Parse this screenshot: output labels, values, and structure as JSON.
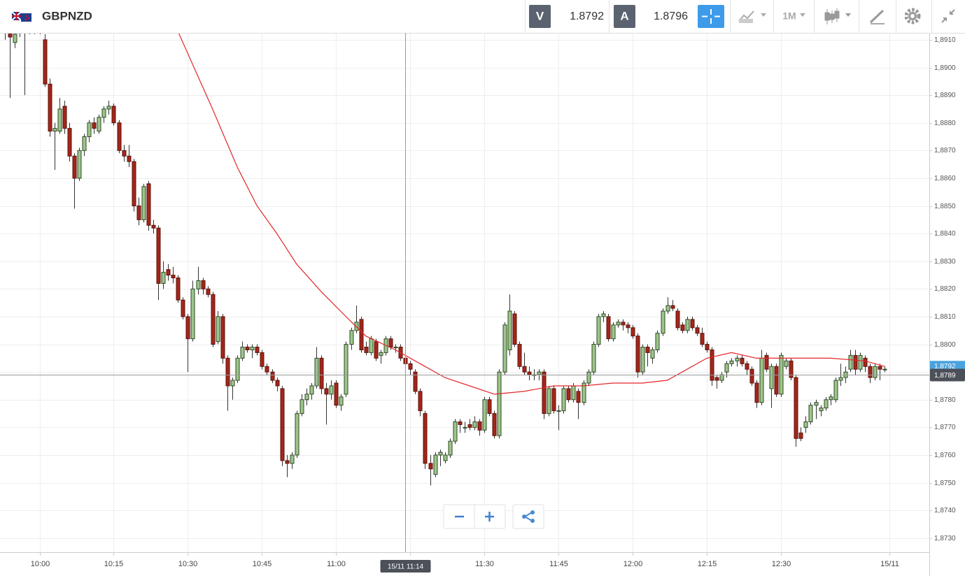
{
  "header": {
    "symbol": "GBPNZD",
    "bid_label": "V",
    "bid": 1.8792,
    "ask_label": "A",
    "ask": 1.8796,
    "timeframe": "1M"
  },
  "chart_data": {
    "type": "candlestick",
    "x": [
      "09:53",
      "09:54",
      "09:55",
      "09:56",
      "09:57",
      "09:58",
      "09:59",
      "10:00",
      "10:01",
      "10:02",
      "10:03",
      "10:04",
      "10:05",
      "10:06",
      "10:07",
      "10:08",
      "10:09",
      "10:10",
      "10:11",
      "10:12",
      "10:13",
      "10:14",
      "10:15",
      "10:16",
      "10:17",
      "10:18",
      "10:19",
      "10:20",
      "10:21",
      "10:22",
      "10:23",
      "10:24",
      "10:25",
      "10:26",
      "10:27",
      "10:28",
      "10:29",
      "10:30",
      "10:31",
      "10:32",
      "10:33",
      "10:34",
      "10:35",
      "10:36",
      "10:37",
      "10:38",
      "10:39",
      "10:40",
      "10:41",
      "10:42",
      "10:43",
      "10:44",
      "10:45",
      "10:46",
      "10:47",
      "10:48",
      "10:49",
      "10:50",
      "10:51",
      "10:52",
      "10:53",
      "10:54",
      "10:55",
      "10:56",
      "10:57",
      "10:58",
      "10:59",
      "11:00",
      "11:01",
      "11:02",
      "11:03",
      "11:04",
      "11:05",
      "11:06",
      "11:07",
      "11:08",
      "11:09",
      "11:10",
      "11:11",
      "11:12",
      "11:13",
      "11:14",
      "11:15",
      "11:16",
      "11:17",
      "11:18",
      "11:19",
      "11:20",
      "11:21",
      "11:22",
      "11:23",
      "11:24",
      "11:25",
      "11:26",
      "11:27",
      "11:28",
      "11:29",
      "11:30",
      "11:31",
      "11:32",
      "11:33",
      "11:34",
      "11:35",
      "11:36",
      "11:37",
      "11:38",
      "11:39",
      "11:40",
      "11:41",
      "11:42",
      "11:43",
      "11:44",
      "11:45",
      "11:46",
      "11:47",
      "11:48",
      "11:49",
      "11:50",
      "11:51",
      "11:52",
      "11:53",
      "11:54",
      "11:55",
      "11:56",
      "11:57",
      "11:58",
      "11:59",
      "12:00",
      "12:01",
      "12:02",
      "12:03",
      "12:04",
      "12:05",
      "12:06",
      "12:07",
      "12:08",
      "12:09",
      "12:10",
      "12:11",
      "12:12",
      "12:13",
      "12:14",
      "12:15",
      "12:16",
      "12:17",
      "12:18",
      "12:19",
      "12:20",
      "12:21",
      "12:22",
      "12:23",
      "12:24",
      "12:25",
      "12:26",
      "12:27",
      "12:28",
      "12:29",
      "12:30",
      "12:31",
      "12:32",
      "12:33",
      "12:34",
      "12:35",
      "12:36",
      "12:37",
      "12:38",
      "12:39",
      "12:40",
      "12:41",
      "12:42",
      "12:43",
      "12:44",
      "12:45",
      "12:46",
      "12:47",
      "12:48",
      "12:49",
      "12:50",
      "12:51"
    ],
    "open": [
      1.8914,
      1.8914,
      1.8909,
      1.8913,
      1.8915,
      1.8914,
      1.8916,
      1.8915,
      1.891,
      1.8894,
      1.8877,
      1.8877,
      1.8886,
      1.8878,
      1.8868,
      1.886,
      1.887,
      1.8875,
      1.888,
      1.8877,
      1.8882,
      1.8885,
      1.8886,
      1.888,
      1.887,
      1.8868,
      1.8866,
      1.885,
      1.8845,
      1.8858,
      1.8843,
      1.8842,
      1.8822,
      1.8827,
      1.8825,
      1.8824,
      1.8816,
      1.881,
      1.8802,
      1.882,
      1.8823,
      1.882,
      1.8818,
      1.8801,
      1.881,
      1.8795,
      1.8785,
      1.8787,
      1.8795,
      1.8799,
      1.8798,
      1.8799,
      1.8797,
      1.8792,
      1.879,
      1.8787,
      1.8784,
      1.8758,
      1.8757,
      1.876,
      1.8775,
      1.878,
      1.8782,
      1.8785,
      1.8795,
      1.8784,
      1.8782,
      1.8786,
      1.8778,
      1.8782,
      1.88,
      1.8805,
      1.8809,
      1.8799,
      1.8797,
      1.8801,
      1.8796,
      1.8797,
      1.8802,
      1.8799,
      1.8799,
      1.8795,
      1.8793,
      1.879,
      1.8783,
      1.8775,
      1.8757,
      1.8753,
      1.876,
      1.8758,
      1.876,
      1.8765,
      1.8772,
      1.877,
      1.8771,
      1.877,
      1.8772,
      1.8769,
      1.878,
      1.8775,
      1.8767,
      1.879,
      1.8798,
      1.8811,
      1.88,
      1.8792,
      1.879,
      1.8789,
      1.8789,
      1.879,
      1.8775,
      1.8784,
      1.8776,
      1.8776,
      1.8784,
      1.878,
      1.8783,
      1.8779,
      1.8786,
      1.879,
      1.88,
      1.881,
      1.881,
      1.8802,
      1.8807,
      1.8808,
      1.8807,
      1.8806,
      1.8803,
      1.879,
      1.8799,
      1.8795,
      1.8798,
      1.8804,
      1.8812,
      1.8814,
      1.8812,
      1.8807,
      1.8805,
      1.8809,
      1.8806,
      1.8804,
      1.88,
      1.8798,
      1.8788,
      1.8787,
      1.879,
      1.8793,
      1.8794,
      1.8795,
      1.8793,
      1.8791,
      1.8786,
      1.8779,
      1.8796,
      1.8784,
      1.8792,
      1.8782,
      1.8792,
      1.8794,
      1.8788,
      1.8768,
      1.877,
      1.8772,
      1.8778,
      1.8776,
      1.8777,
      1.878,
      1.878,
      1.8787,
      1.8788,
      1.8791,
      1.8796,
      1.8791,
      1.8795,
      1.8792,
      1.8788,
      1.8792,
      1.8791
    ],
    "high": [
      1.8918,
      1.8916,
      1.8913,
      1.8917,
      1.8918,
      1.8919,
      1.8918,
      1.8917,
      1.8912,
      1.8896,
      1.888,
      1.8889,
      1.8888,
      1.888,
      1.8869,
      1.8871,
      1.8876,
      1.8881,
      1.8882,
      1.8883,
      1.8886,
      1.8888,
      1.8887,
      1.8881,
      1.8872,
      1.8872,
      1.8867,
      1.8853,
      1.8858,
      1.8859,
      1.8845,
      1.8843,
      1.883,
      1.8829,
      1.8828,
      1.8825,
      1.8817,
      1.8811,
      1.8823,
      1.8828,
      1.8824,
      1.8821,
      1.8819,
      1.8812,
      1.8811,
      1.8796,
      1.8788,
      1.8796,
      1.8801,
      1.88,
      1.88,
      1.88,
      1.8798,
      1.8793,
      1.8791,
      1.8788,
      1.8785,
      1.876,
      1.8761,
      1.8776,
      1.8782,
      1.8784,
      1.8786,
      1.8799,
      1.8796,
      1.8786,
      1.8787,
      1.8787,
      1.8782,
      1.8801,
      1.8806,
      1.8814,
      1.881,
      1.8801,
      1.8803,
      1.8802,
      1.8798,
      1.8803,
      1.8803,
      1.88,
      1.88,
      1.8796,
      1.8794,
      1.8791,
      1.8784,
      1.8776,
      1.876,
      1.8761,
      1.8762,
      1.8761,
      1.8766,
      1.8773,
      1.8773,
      1.8772,
      1.8773,
      1.8774,
      1.8773,
      1.8781,
      1.8781,
      1.8776,
      1.8791,
      1.8808,
      1.8818,
      1.8812,
      1.8801,
      1.8797,
      1.8792,
      1.8791,
      1.8791,
      1.8791,
      1.8785,
      1.8785,
      1.8778,
      1.8785,
      1.8785,
      1.8786,
      1.8784,
      1.8787,
      1.8791,
      1.8801,
      1.8811,
      1.8812,
      1.8811,
      1.8808,
      1.8809,
      1.8809,
      1.8808,
      1.8807,
      1.8804,
      1.88,
      1.88,
      1.8799,
      1.8805,
      1.8813,
      1.8817,
      1.8816,
      1.8813,
      1.8808,
      1.881,
      1.881,
      1.8807,
      1.8806,
      1.8801,
      1.8799,
      1.8789,
      1.879,
      1.8794,
      1.8795,
      1.8796,
      1.8796,
      1.8794,
      1.8792,
      1.8787,
      1.8798,
      1.8797,
      1.8793,
      1.8793,
      1.8797,
      1.8795,
      1.8795,
      1.8789,
      1.877,
      1.8774,
      1.8779,
      1.878,
      1.8778,
      1.8781,
      1.8782,
      1.8788,
      1.8793,
      1.8792,
      1.8798,
      1.8798,
      1.8797,
      1.8796,
      1.8793,
      1.8793,
      1.8793,
      1.8792
    ],
    "low": [
      1.891,
      1.8889,
      1.8907,
      1.8911,
      1.889,
      1.8912,
      1.8912,
      1.8912,
      1.8893,
      1.8875,
      1.8863,
      1.8876,
      1.8876,
      1.8866,
      1.8849,
      1.8859,
      1.8868,
      1.8873,
      1.8876,
      1.8876,
      1.888,
      1.8883,
      1.8879,
      1.8869,
      1.8866,
      1.8864,
      1.8848,
      1.8843,
      1.8844,
      1.8841,
      1.884,
      1.8816,
      1.882,
      1.8823,
      1.8822,
      1.8815,
      1.8809,
      1.879,
      1.8801,
      1.8818,
      1.8818,
      1.8817,
      1.8799,
      1.88,
      1.8793,
      1.8776,
      1.878,
      1.8786,
      1.8794,
      1.8797,
      1.8795,
      1.8796,
      1.8791,
      1.8789,
      1.8786,
      1.8783,
      1.8756,
      1.8752,
      1.8755,
      1.8759,
      1.8774,
      1.8778,
      1.878,
      1.8784,
      1.8782,
      1.8771,
      1.878,
      1.8777,
      1.8776,
      1.8781,
      1.8798,
      1.8804,
      1.8797,
      1.8796,
      1.8796,
      1.8794,
      1.8793,
      1.8796,
      1.8798,
      1.8797,
      1.8794,
      1.8792,
      1.8789,
      1.8782,
      1.8774,
      1.8755,
      1.8749,
      1.8752,
      1.8756,
      1.8757,
      1.8759,
      1.8764,
      1.8768,
      1.8768,
      1.8769,
      1.8769,
      1.8767,
      1.8768,
      1.8774,
      1.8766,
      1.8766,
      1.8789,
      1.8796,
      1.8799,
      1.8791,
      1.8789,
      1.8787,
      1.8787,
      1.8787,
      1.8773,
      1.8774,
      1.8775,
      1.8769,
      1.8775,
      1.8779,
      1.8779,
      1.8773,
      1.8778,
      1.8785,
      1.8789,
      1.8799,
      1.8808,
      1.8801,
      1.8801,
      1.8806,
      1.8805,
      1.8804,
      1.8802,
      1.8788,
      1.8789,
      1.8792,
      1.8793,
      1.8797,
      1.8803,
      1.8811,
      1.8812,
      1.8805,
      1.8804,
      1.8804,
      1.8805,
      1.8803,
      1.8799,
      1.8797,
      1.8785,
      1.8784,
      1.8786,
      1.8788,
      1.8792,
      1.8792,
      1.8792,
      1.8789,
      1.8785,
      1.8777,
      1.8778,
      1.879,
      1.8777,
      1.8781,
      1.8781,
      1.8791,
      1.8787,
      1.8763,
      1.8765,
      1.8768,
      1.8771,
      1.8773,
      1.8774,
      1.8776,
      1.8778,
      1.8779,
      1.8785,
      1.8786,
      1.879,
      1.8789,
      1.879,
      1.879,
      1.8786,
      1.8787,
      1.8787,
      1.879
    ],
    "close": [
      1.8916,
      1.8911,
      1.8912,
      1.8915,
      1.8914,
      1.8916,
      1.8915,
      1.8913,
      1.8894,
      1.8877,
      1.8878,
      1.8885,
      1.8878,
      1.8868,
      1.886,
      1.887,
      1.8875,
      1.888,
      1.8878,
      1.8882,
      1.8885,
      1.8886,
      1.888,
      1.887,
      1.8868,
      1.8866,
      1.885,
      1.8845,
      1.8857,
      1.8843,
      1.8842,
      1.8822,
      1.8826,
      1.8825,
      1.8824,
      1.8816,
      1.881,
      1.8802,
      1.882,
      1.8823,
      1.882,
      1.8818,
      1.88,
      1.881,
      1.8795,
      1.8785,
      1.8787,
      1.8795,
      1.8799,
      1.8798,
      1.8799,
      1.8797,
      1.8792,
      1.879,
      1.8787,
      1.8785,
      1.8758,
      1.8757,
      1.876,
      1.8775,
      1.878,
      1.8782,
      1.8785,
      1.8795,
      1.8784,
      1.8782,
      1.8785,
      1.8778,
      1.8781,
      1.88,
      1.8805,
      1.8808,
      1.8798,
      1.8797,
      1.8802,
      1.8795,
      1.8797,
      1.8802,
      1.8799,
      1.8799,
      1.8795,
      1.8793,
      1.8791,
      1.8783,
      1.8776,
      1.8757,
      1.8755,
      1.876,
      1.8761,
      1.876,
      1.8765,
      1.8772,
      1.8771,
      1.877,
      1.877,
      1.8772,
      1.8769,
      1.878,
      1.8775,
      1.8767,
      1.879,
      1.8807,
      1.8812,
      1.88,
      1.8792,
      1.879,
      1.8789,
      1.8789,
      1.879,
      1.8775,
      1.8784,
      1.8776,
      1.8776,
      1.8784,
      1.878,
      1.8785,
      1.8779,
      1.8786,
      1.879,
      1.88,
      1.881,
      1.8811,
      1.8802,
      1.8807,
      1.8808,
      1.8807,
      1.8806,
      1.8803,
      1.879,
      1.8799,
      1.8797,
      1.8798,
      1.8804,
      1.8812,
      1.8814,
      1.8813,
      1.8806,
      1.8805,
      1.8809,
      1.8806,
      1.8804,
      1.88,
      1.8798,
      1.8787,
      1.8787,
      1.8789,
      1.8793,
      1.8794,
      1.8795,
      1.8793,
      1.8791,
      1.8786,
      1.8779,
      1.8795,
      1.8791,
      1.8792,
      1.8782,
      1.8796,
      1.8794,
      1.8788,
      1.8766,
      1.8766,
      1.8772,
      1.8778,
      1.8779,
      1.8777,
      1.878,
      1.8781,
      1.8787,
      1.8788,
      1.879,
      1.8796,
      1.8791,
      1.8796,
      1.8792,
      1.8788,
      1.8792,
      1.8791,
      1.8791
    ],
    "up_color": "#9ec68c",
    "down_color": "#a3261a",
    "ma": {
      "color": "#e3262a",
      "x": [
        "10:28",
        "10:35",
        "10:40",
        "10:44",
        "10:48",
        "10:52",
        "10:57",
        "11:02",
        "11:06",
        "11:12",
        "11:17",
        "11:22",
        "11:27",
        "11:32",
        "11:38",
        "11:44",
        "11:50",
        "11:56",
        "12:02",
        "12:07",
        "12:11",
        "12:15",
        "12:20",
        "12:25",
        "12:32",
        "12:40",
        "12:47",
        "12:51"
      ],
      "values": [
        1.8913,
        1.8885,
        1.8864,
        1.885,
        1.884,
        1.8829,
        1.8819,
        1.881,
        1.8803,
        1.8798,
        1.8793,
        1.8788,
        1.8785,
        1.8782,
        1.8783,
        1.8785,
        1.8785,
        1.8786,
        1.8786,
        1.8787,
        1.8791,
        1.8795,
        1.8797,
        1.8795,
        1.8795,
        1.8795,
        1.8794,
        1.8792
      ]
    },
    "xlim": [
      "09:52",
      "13:00"
    ],
    "xticks": [
      "10:00",
      "10:15",
      "10:30",
      "10:45",
      "11:00",
      "11:15",
      "11:30",
      "11:45",
      "12:00",
      "12:15",
      "12:30",
      {
        "value": "12:52",
        "label": "15/11"
      }
    ],
    "ylim": [
      1.87249,
      1.89125
    ],
    "yticks": [
      {
        "value": 1.873,
        "label": "1,8730"
      },
      {
        "value": 1.874,
        "label": "1,8740"
      },
      {
        "value": 1.875,
        "label": "1,8750"
      },
      {
        "value": 1.876,
        "label": "1,8760"
      },
      {
        "value": 1.877,
        "label": "1,8770"
      },
      {
        "value": 1.878,
        "label": "1,8780"
      },
      {
        "value": 1.879,
        "label": "1,8790"
      },
      {
        "value": 1.88,
        "label": "1,8800"
      },
      {
        "value": 1.881,
        "label": "1,8810"
      },
      {
        "value": 1.882,
        "label": "1,8820"
      },
      {
        "value": 1.883,
        "label": "1,8830"
      },
      {
        "value": 1.884,
        "label": "1,8840"
      },
      {
        "value": 1.885,
        "label": "1,8850"
      },
      {
        "value": 1.886,
        "label": "1,8860"
      },
      {
        "value": 1.887,
        "label": "1,8870"
      },
      {
        "value": 1.888,
        "label": "1,8880"
      },
      {
        "value": 1.889,
        "label": "1,8890"
      },
      {
        "value": 1.89,
        "label": "1,8900"
      },
      {
        "value": 1.891,
        "label": "1,8910"
      }
    ],
    "grid": true,
    "last_price": {
      "value": 1.8792,
      "label": "1,8792",
      "color": "#4aa3df"
    },
    "crosshair": {
      "x": {
        "value": "11:14",
        "label": "15/11 11:14"
      },
      "y": {
        "value": 1.8789,
        "label": "1,8789"
      }
    }
  }
}
